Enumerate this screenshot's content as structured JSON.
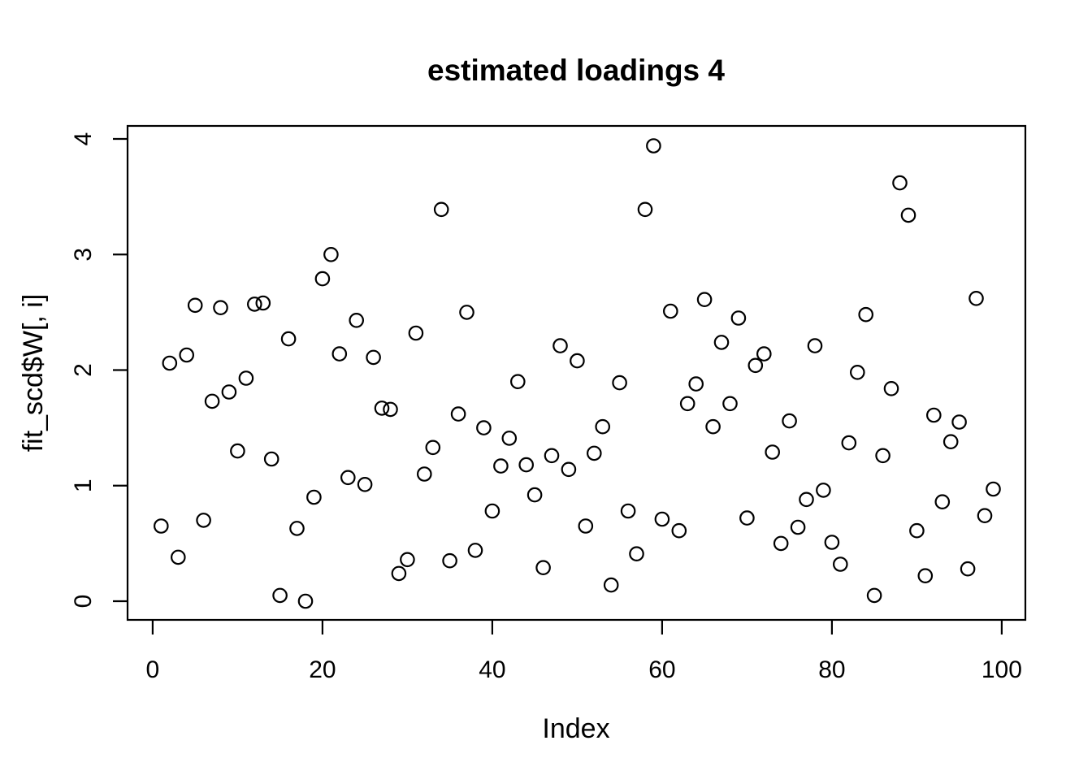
{
  "chart_data": {
    "type": "scatter",
    "title": "estimated loadings 4",
    "xlabel": "Index",
    "ylabel": "fit_scd$W[, i]",
    "x_ticks": [
      0,
      20,
      40,
      60,
      80,
      100
    ],
    "y_ticks": [
      0,
      1,
      2,
      3,
      4
    ],
    "xlim": [
      -3,
      103
    ],
    "ylim": [
      -0.16,
      4.11
    ],
    "grid": false,
    "legend": "none",
    "marker": "open-circle",
    "marker_color": "#000000",
    "background_color": "#ffffff",
    "x": [
      1,
      2,
      3,
      4,
      5,
      6,
      7,
      8,
      9,
      10,
      11,
      12,
      13,
      14,
      15,
      16,
      17,
      18,
      19,
      20,
      21,
      22,
      23,
      24,
      25,
      26,
      27,
      28,
      29,
      30,
      31,
      32,
      33,
      34,
      35,
      36,
      37,
      38,
      39,
      40,
      41,
      42,
      43,
      44,
      45,
      46,
      47,
      48,
      49,
      50,
      51,
      52,
      53,
      54,
      55,
      56,
      57,
      58,
      59,
      60,
      61,
      62,
      63,
      64,
      65,
      66,
      67,
      68,
      69,
      70,
      71,
      72,
      73,
      74,
      75,
      76,
      77,
      78,
      79,
      80,
      81,
      82,
      83,
      84,
      85,
      86,
      87,
      88,
      89,
      90,
      91,
      92,
      93,
      94,
      95,
      96,
      97,
      98,
      99
    ],
    "y": [
      0.65,
      2.06,
      0.38,
      2.13,
      2.56,
      0.7,
      1.73,
      2.54,
      1.81,
      1.3,
      1.93,
      2.57,
      2.58,
      1.23,
      0.05,
      2.27,
      0.63,
      0.0,
      0.9,
      2.79,
      3.0,
      2.14,
      1.07,
      2.43,
      1.01,
      2.11,
      1.67,
      1.66,
      0.24,
      0.36,
      2.32,
      1.1,
      1.33,
      3.39,
      0.35,
      1.62,
      2.5,
      0.44,
      1.5,
      0.78,
      1.17,
      1.41,
      1.9,
      1.18,
      0.92,
      0.29,
      1.26,
      2.21,
      1.14,
      2.08,
      0.65,
      1.28,
      1.51,
      0.14,
      1.89,
      0.78,
      0.41,
      3.39,
      3.94,
      0.71,
      2.51,
      0.61,
      1.71,
      1.88,
      2.61,
      1.51,
      2.24,
      1.71,
      2.45,
      0.72,
      2.04,
      2.14,
      1.29,
      0.5,
      1.56,
      0.64,
      0.88,
      2.21,
      0.96,
      0.51,
      0.32,
      1.37,
      1.98,
      2.48,
      0.05,
      1.26,
      1.84,
      3.62,
      3.34,
      0.61,
      0.22,
      1.61,
      0.86,
      1.38,
      1.55,
      0.28,
      2.62,
      0.74,
      0.97
    ]
  }
}
